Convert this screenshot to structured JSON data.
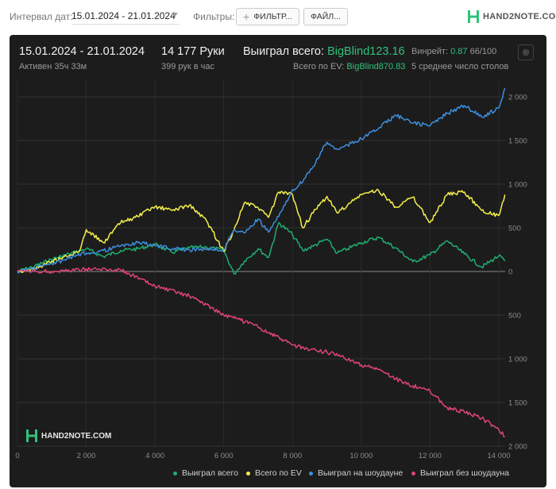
{
  "toolbar": {
    "date_label": "Интервал дат:",
    "date_value": "15.01.2024 - 21.01.2024",
    "filters_label": "Фильтры:",
    "filter_button": "ФИЛЬТР...",
    "file_button": "ФАЙЛ...",
    "logo_text": "HAND2NOTE.COM"
  },
  "summary": {
    "date_range": "15.01.2024 - 21.01.2024",
    "active": "Активен 35ч 33м",
    "hands": "14 177 Руки",
    "hands_per_hour": "399 рук в час",
    "won_total_label": "Выиграл всего:",
    "won_total_value": "BigBlind123.16",
    "ev_label": "Всего по EV:",
    "ev_value": "BigBlind870.83",
    "winrate_label": "Винрейт:",
    "winrate_value": "0.87",
    "winrate_rest": "66/100",
    "tables": "5 среднее число столов",
    "watermark": "HAND2NOTE.COM"
  },
  "colors": {
    "panel": "#1c1c1c",
    "won": "#1fae6e",
    "ev": "#f5f04a",
    "showdown": "#3b8fe0",
    "non_showdown": "#e0437a",
    "accent": "#2fc27a"
  },
  "icons": {
    "settings": "gear-icon",
    "filter_add": "plus-icon",
    "date_dropdown": "chevron-down-icon"
  },
  "chart_data": {
    "type": "line",
    "title": "",
    "xlabel": "",
    "ylabel": "",
    "xlim": [
      0,
      14177
    ],
    "ylim": [
      -1900,
      2100
    ],
    "x_ticks": [
      0,
      2000,
      4000,
      6000,
      8000,
      10000,
      12000,
      14000
    ],
    "x_tick_labels": [
      "0",
      "2 000",
      "4 000",
      "6 000",
      "8 000",
      "10 000",
      "12 000",
      "14 000"
    ],
    "y_ticks": [
      2000,
      1500,
      1000,
      500,
      0,
      -500,
      -1000,
      -1500,
      -2000
    ],
    "y_tick_labels": [
      "2 000",
      "1 500",
      "1 000",
      "500",
      "0",
      "500",
      "1 000",
      "1 500",
      "2 000"
    ],
    "grid": true,
    "legend_position": "bottom",
    "series": [
      {
        "name": "Выиграл всего",
        "color": "#1fae6e",
        "x": [
          0,
          500,
          1000,
          1500,
          2000,
          2500,
          3000,
          3500,
          4000,
          4500,
          5000,
          5500,
          6000,
          6300,
          6600,
          7000,
          7300,
          7600,
          8000,
          8300,
          8600,
          9000,
          9300,
          9600,
          10000,
          10500,
          11000,
          11500,
          12000,
          12500,
          13000,
          13500,
          14000,
          14177
        ],
        "y": [
          0,
          60,
          140,
          200,
          260,
          170,
          240,
          260,
          310,
          220,
          270,
          280,
          240,
          -30,
          120,
          260,
          160,
          560,
          420,
          240,
          290,
          370,
          210,
          260,
          330,
          390,
          270,
          110,
          190,
          350,
          200,
          50,
          180,
          120
        ]
      },
      {
        "name": "Всего по EV",
        "color": "#f5f04a",
        "x": [
          0,
          500,
          1000,
          1500,
          1800,
          2000,
          2500,
          3000,
          3500,
          4000,
          4500,
          5000,
          5500,
          6000,
          6300,
          6600,
          7000,
          7300,
          7600,
          8000,
          8300,
          8600,
          9000,
          9300,
          9600,
          10000,
          10500,
          11000,
          11500,
          12000,
          12500,
          13000,
          13500,
          14000,
          14177
        ],
        "y": [
          0,
          30,
          120,
          180,
          230,
          480,
          330,
          560,
          630,
          740,
          700,
          760,
          580,
          230,
          480,
          790,
          730,
          620,
          910,
          880,
          500,
          670,
          860,
          670,
          760,
          880,
          930,
          740,
          850,
          560,
          880,
          910,
          700,
          640,
          880
        ]
      },
      {
        "name": "Выиграл на шоудауне",
        "color": "#3b8fe0",
        "x": [
          0,
          500,
          1000,
          1500,
          2000,
          2500,
          3000,
          3500,
          4000,
          4500,
          5000,
          5500,
          6000,
          6300,
          6600,
          7000,
          7300,
          7600,
          8000,
          8300,
          8600,
          9000,
          9300,
          9600,
          10000,
          10500,
          11000,
          11500,
          12000,
          12500,
          13000,
          13500,
          14000,
          14177
        ],
        "y": [
          0,
          40,
          90,
          150,
          210,
          240,
          290,
          330,
          300,
          260,
          250,
          260,
          250,
          480,
          440,
          600,
          450,
          630,
          940,
          1030,
          1200,
          1480,
          1400,
          1450,
          1520,
          1640,
          1790,
          1700,
          1670,
          1810,
          1900,
          1770,
          1870,
          2100
        ]
      },
      {
        "name": "Выиграл без шоудауна",
        "color": "#e0437a",
        "x": [
          0,
          1000,
          2000,
          3000,
          4000,
          5000,
          5500,
          6000,
          6500,
          7000,
          7500,
          8000,
          8500,
          9000,
          9500,
          10000,
          10500,
          11000,
          11500,
          12000,
          12500,
          13000,
          13500,
          14000,
          14177
        ],
        "y": [
          0,
          0,
          30,
          20,
          -170,
          -280,
          -380,
          -500,
          -560,
          -640,
          -740,
          -840,
          -900,
          -920,
          -990,
          -1070,
          -1120,
          -1230,
          -1310,
          -1370,
          -1560,
          -1610,
          -1680,
          -1810,
          -1890
        ]
      }
    ]
  }
}
